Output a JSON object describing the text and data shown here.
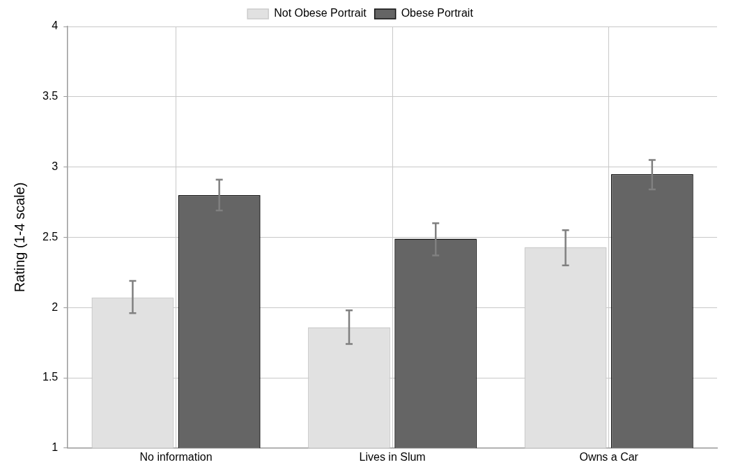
{
  "chart_data": {
    "type": "bar",
    "ylabel": "Rating (1-4 scale)",
    "categories": [
      "No information",
      "Lives in Slum",
      "Owns a Car"
    ],
    "series": [
      {
        "name": "Not Obese Portrait",
        "color": "#e1e1e1",
        "values": [
          2.07,
          1.86,
          2.43
        ],
        "errors": [
          [
            1.96,
            2.19
          ],
          [
            1.74,
            1.98
          ],
          [
            2.3,
            2.55
          ]
        ]
      },
      {
        "name": "Obese Portrait",
        "color": "#656565",
        "values": [
          2.8,
          2.49,
          2.95
        ],
        "errors": [
          [
            2.69,
            2.91
          ],
          [
            2.37,
            2.6
          ],
          [
            2.84,
            3.05
          ]
        ]
      }
    ],
    "ylim": [
      1,
      4
    ],
    "yticks": [
      1,
      1.5,
      2,
      2.5,
      3,
      3.5,
      4
    ],
    "grid": true,
    "legend": "top"
  }
}
